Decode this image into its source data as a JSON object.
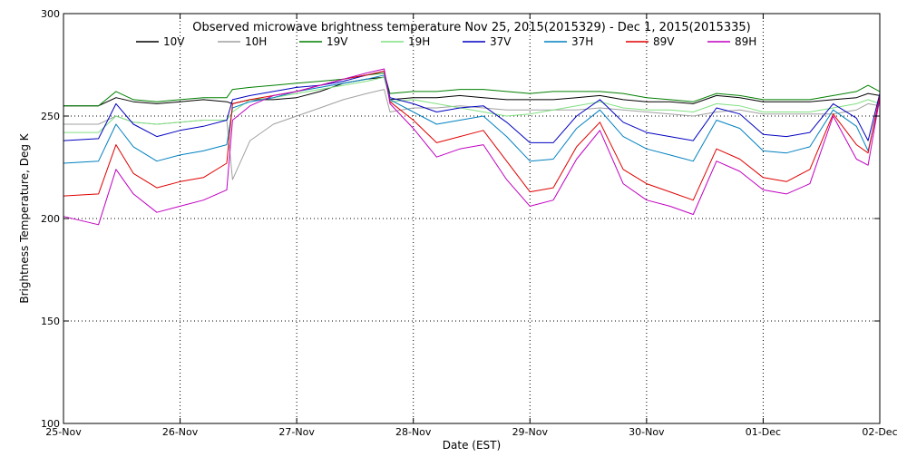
{
  "chart_data": {
    "type": "line",
    "title": "Observed microwave brightness temperature Nov 25, 2015(2015329) - Dec  1, 2015(2015335)",
    "xlabel": "Date (EST)",
    "ylabel": "Brightness Temperature, Deg K",
    "xlim": [
      0,
      7
    ],
    "ylim": [
      100,
      300
    ],
    "x_ticks": [
      {
        "value": 0,
        "label": "25-Nov"
      },
      {
        "value": 1,
        "label": "26-Nov"
      },
      {
        "value": 2,
        "label": "27-Nov"
      },
      {
        "value": 3,
        "label": "28-Nov"
      },
      {
        "value": 4,
        "label": "29-Nov"
      },
      {
        "value": 5,
        "label": "30-Nov"
      },
      {
        "value": 6,
        "label": "01-Dec"
      },
      {
        "value": 7,
        "label": "02-Dec"
      }
    ],
    "y_ticks": [
      100,
      150,
      200,
      250,
      300
    ],
    "grid": true,
    "legend_position": "top",
    "series": [
      {
        "name": "10V",
        "color": "#000000",
        "x": [
          0,
          0.3,
          0.45,
          0.6,
          0.8,
          1.0,
          1.2,
          1.4,
          1.45,
          1.6,
          1.8,
          2.0,
          2.2,
          2.4,
          2.6,
          2.75,
          2.8,
          3.0,
          3.2,
          3.4,
          3.6,
          3.8,
          4.0,
          4.2,
          4.4,
          4.6,
          4.8,
          5.0,
          5.2,
          5.4,
          5.6,
          5.8,
          6.0,
          6.2,
          6.4,
          6.6,
          6.8,
          6.9,
          7.0
        ],
        "y": [
          255,
          255,
          259,
          257,
          256,
          257,
          258,
          257,
          256,
          258,
          258,
          259,
          262,
          266,
          268,
          269,
          258,
          259,
          259,
          260,
          259,
          258,
          258,
          258,
          259,
          260,
          258,
          257,
          257,
          256,
          260,
          259,
          257,
          257,
          257,
          258,
          259,
          261,
          260
        ]
      },
      {
        "name": "10H",
        "color": "#a0a0a0",
        "x": [
          0,
          0.3,
          0.45,
          0.6,
          0.8,
          1.0,
          1.2,
          1.4,
          1.45,
          1.6,
          1.8,
          2.0,
          2.2,
          2.4,
          2.6,
          2.75,
          2.8,
          3.0,
          3.2,
          3.4,
          3.6,
          3.8,
          4.0,
          4.2,
          4.4,
          4.6,
          4.8,
          5.0,
          5.2,
          5.4,
          5.6,
          5.8,
          6.0,
          6.2,
          6.4,
          6.6,
          6.8,
          6.9,
          7.0
        ],
        "y": [
          246,
          246,
          250,
          247,
          246,
          247,
          248,
          248,
          219,
          238,
          246,
          250,
          254,
          258,
          261,
          263,
          252,
          254,
          254,
          255,
          254,
          253,
          253,
          253,
          253,
          254,
          253,
          252,
          251,
          250,
          252,
          253,
          251,
          251,
          251,
          251,
          253,
          256,
          255
        ]
      },
      {
        "name": "19V",
        "color": "#008000",
        "x": [
          0,
          0.3,
          0.45,
          0.6,
          0.8,
          1.0,
          1.2,
          1.4,
          1.45,
          1.6,
          1.8,
          2.0,
          2.2,
          2.4,
          2.6,
          2.75,
          2.8,
          3.0,
          3.2,
          3.4,
          3.6,
          3.8,
          4.0,
          4.2,
          4.4,
          4.6,
          4.8,
          5.0,
          5.2,
          5.4,
          5.6,
          5.8,
          6.0,
          6.2,
          6.4,
          6.6,
          6.8,
          6.9,
          7.0
        ],
        "y": [
          255,
          255,
          262,
          258,
          257,
          258,
          259,
          259,
          263,
          264,
          265,
          266,
          267,
          268,
          270,
          271,
          261,
          262,
          262,
          263,
          263,
          262,
          261,
          262,
          262,
          262,
          261,
          259,
          258,
          257,
          261,
          260,
          258,
          258,
          258,
          260,
          262,
          265,
          262
        ]
      },
      {
        "name": "19H",
        "color": "#80e080",
        "x": [
          0,
          0.3,
          0.45,
          0.6,
          0.8,
          1.0,
          1.2,
          1.4,
          1.45,
          1.6,
          1.8,
          2.0,
          2.2,
          2.4,
          2.6,
          2.75,
          2.8,
          3.0,
          3.2,
          3.4,
          3.6,
          3.8,
          4.0,
          4.2,
          4.4,
          4.6,
          4.8,
          5.0,
          5.2,
          5.4,
          5.6,
          5.8,
          6.0,
          6.2,
          6.4,
          6.6,
          6.8,
          6.9,
          7.0
        ],
        "y": [
          242,
          242,
          250,
          247,
          246,
          247,
          248,
          248,
          252,
          258,
          259,
          261,
          263,
          265,
          267,
          269,
          257,
          258,
          256,
          254,
          252,
          250,
          251,
          253,
          255,
          257,
          254,
          253,
          253,
          252,
          256,
          255,
          252,
          252,
          252,
          254,
          256,
          258,
          256
        ]
      },
      {
        "name": "37V",
        "color": "#0000c0",
        "x": [
          0,
          0.3,
          0.45,
          0.6,
          0.8,
          1.0,
          1.2,
          1.4,
          1.45,
          1.6,
          1.8,
          2.0,
          2.2,
          2.4,
          2.6,
          2.75,
          2.8,
          3.0,
          3.2,
          3.4,
          3.6,
          3.8,
          4.0,
          4.2,
          4.4,
          4.6,
          4.8,
          5.0,
          5.2,
          5.4,
          5.6,
          5.8,
          6.0,
          6.2,
          6.4,
          6.6,
          6.8,
          6.9,
          7.0
        ],
        "y": [
          238,
          239,
          256,
          246,
          240,
          243,
          245,
          248,
          258,
          260,
          262,
          264,
          265,
          267,
          270,
          272,
          259,
          256,
          252,
          254,
          255,
          247,
          237,
          237,
          250,
          258,
          247,
          242,
          240,
          238,
          254,
          251,
          241,
          240,
          242,
          256,
          249,
          238,
          261
        ]
      },
      {
        "name": "37H",
        "color": "#0080c0",
        "x": [
          0,
          0.3,
          0.45,
          0.6,
          0.8,
          1.0,
          1.2,
          1.4,
          1.45,
          1.6,
          1.8,
          2.0,
          2.2,
          2.4,
          2.6,
          2.75,
          2.8,
          3.0,
          3.2,
          3.4,
          3.6,
          3.8,
          4.0,
          4.2,
          4.4,
          4.6,
          4.8,
          5.0,
          5.2,
          5.4,
          5.6,
          5.8,
          6.0,
          6.2,
          6.4,
          6.6,
          6.8,
          6.9,
          7.0
        ],
        "y": [
          227,
          228,
          246,
          235,
          228,
          231,
          233,
          236,
          254,
          257,
          259,
          262,
          264,
          266,
          268,
          270,
          258,
          252,
          246,
          248,
          250,
          240,
          228,
          229,
          244,
          253,
          240,
          234,
          231,
          228,
          248,
          244,
          233,
          232,
          235,
          253,
          245,
          233,
          258
        ]
      },
      {
        "name": "89V",
        "color": "#e00000",
        "x": [
          0,
          0.3,
          0.45,
          0.6,
          0.8,
          1.0,
          1.2,
          1.4,
          1.45,
          1.6,
          1.8,
          2.0,
          2.2,
          2.4,
          2.6,
          2.75,
          2.8,
          3.0,
          3.2,
          3.4,
          3.6,
          3.8,
          4.0,
          4.2,
          4.4,
          4.6,
          4.8,
          5.0,
          5.2,
          5.4,
          5.6,
          5.8,
          6.0,
          6.2,
          6.4,
          6.6,
          6.8,
          6.9,
          7.0
        ],
        "y": [
          211,
          212,
          236,
          222,
          215,
          218,
          220,
          227,
          256,
          258,
          260,
          262,
          265,
          268,
          270,
          272,
          257,
          248,
          237,
          240,
          243,
          228,
          213,
          215,
          235,
          247,
          224,
          217,
          213,
          209,
          234,
          229,
          220,
          218,
          224,
          251,
          236,
          232,
          260
        ]
      },
      {
        "name": "89H",
        "color": "#c000c0",
        "x": [
          0,
          0.3,
          0.45,
          0.6,
          0.8,
          1.0,
          1.2,
          1.4,
          1.45,
          1.6,
          1.8,
          2.0,
          2.2,
          2.4,
          2.6,
          2.75,
          2.8,
          3.0,
          3.2,
          3.4,
          3.6,
          3.8,
          4.0,
          4.2,
          4.4,
          4.6,
          4.8,
          5.0,
          5.2,
          5.4,
          5.6,
          5.8,
          6.0,
          6.2,
          6.4,
          6.6,
          6.8,
          6.9,
          7.0
        ],
        "y": [
          201,
          197,
          224,
          212,
          203,
          206,
          209,
          214,
          248,
          255,
          260,
          262,
          265,
          268,
          271,
          273,
          256,
          244,
          230,
          234,
          236,
          219,
          206,
          209,
          229,
          243,
          217,
          209,
          206,
          202,
          228,
          223,
          214,
          212,
          217,
          250,
          229,
          226,
          259
        ]
      }
    ]
  }
}
